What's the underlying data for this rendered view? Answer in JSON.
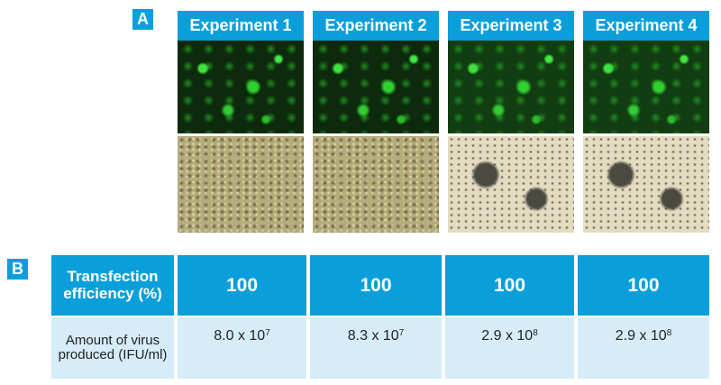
{
  "panel_a": {
    "label": "A",
    "columns": [
      "Experiment 1",
      "Experiment 2",
      "Experiment 3",
      "Experiment 4"
    ]
  },
  "panel_b": {
    "label": "B",
    "rows": [
      {
        "label": "Transfection efficiency (%)",
        "values": [
          100,
          100,
          100,
          100
        ]
      },
      {
        "label": "Amount of virus produced (IFU/ml)",
        "values": [
          {
            "base": "8.0 x 10",
            "exp": "7"
          },
          {
            "base": "8.3 x 10",
            "exp": "7"
          },
          {
            "base": "2.9 x 10",
            "exp": "8"
          },
          {
            "base": "2.9 x 10",
            "exp": "8"
          }
        ]
      }
    ]
  }
}
